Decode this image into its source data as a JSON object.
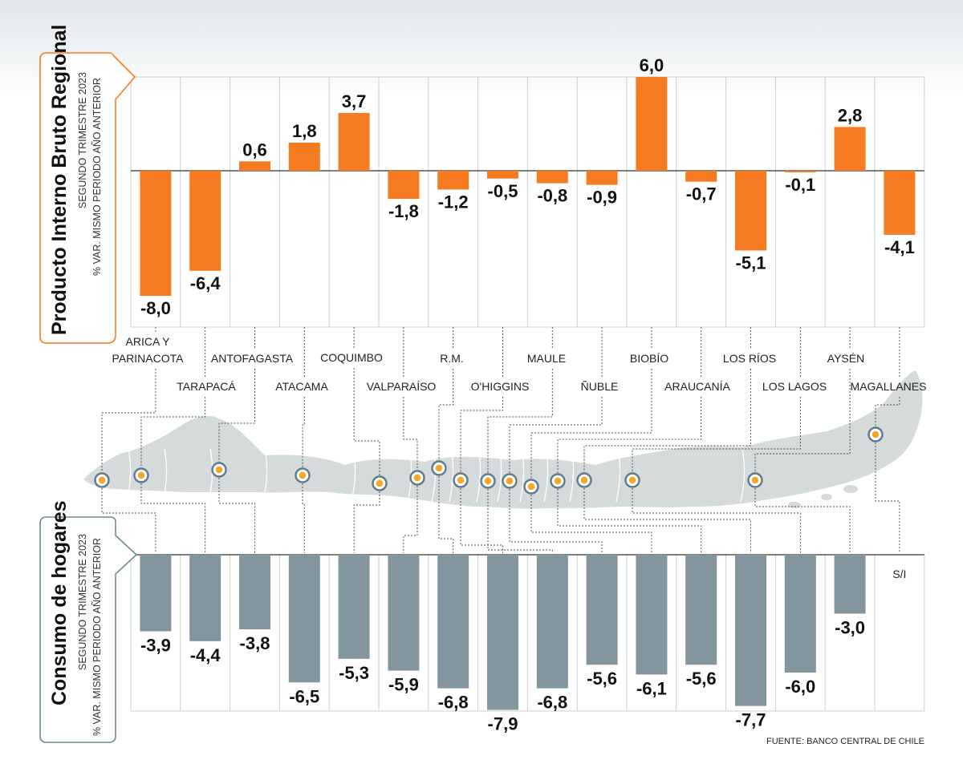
{
  "chart_data": [
    {
      "type": "bar",
      "title": "Producto Interno Bruto Regional",
      "subtitle_1": "SEGUNDO TRIMESTRE 2023",
      "subtitle_2": "% VAR. MISMO PERIODO AÑO ANTERIOR",
      "categories": [
        "ARICA Y PARINACOTA",
        "TARAPACÁ",
        "ANTOFAGASTA",
        "ATACAMA",
        "COQUIMBO",
        "VALPARAÍSO",
        "R.M.",
        "O'HIGGINS",
        "MAULE",
        "ÑUBLE",
        "BIOBÍO",
        "ARAUCANÍA",
        "LOS RÍOS",
        "LOS LAGOS",
        "AYSÉN",
        "MAGALLANES"
      ],
      "values": [
        -8.0,
        -6.4,
        0.6,
        1.8,
        3.7,
        -1.8,
        -1.2,
        -0.5,
        -0.8,
        -0.9,
        6.0,
        -0.7,
        -5.1,
        -0.1,
        2.8,
        -4.1
      ],
      "labels": [
        "-8,0",
        "-6,4",
        "0,6",
        "1,8",
        "3,7",
        "-1,8",
        "-1,2",
        "-0,5",
        "-0,8",
        "-0,9",
        "6,0",
        "-0,7",
        "-5,1",
        "-0,1",
        "2,8",
        "-4,1"
      ],
      "color": "#f47b20"
    },
    {
      "type": "bar",
      "title": "Consumo de hogares",
      "subtitle_1": "SEGUNDO TRIMESTRE 2023",
      "subtitle_2": "% VAR. MISMO PERIODO AÑO ANTERIOR",
      "categories": [
        "ARICA Y PARINACOTA",
        "TARAPACÁ",
        "ANTOFAGASTA",
        "ATACAMA",
        "COQUIMBO",
        "VALPARAÍSO",
        "R.M.",
        "O'HIGGINS",
        "MAULE",
        "ÑUBLE",
        "BIOBÍO",
        "ARAUCANÍA",
        "LOS RÍOS",
        "LOS LAGOS",
        "AYSÉN",
        "MAGALLANES"
      ],
      "values": [
        -3.9,
        -4.4,
        -3.8,
        -6.5,
        -5.3,
        -5.9,
        -6.8,
        -7.9,
        -6.8,
        -5.6,
        -6.1,
        -5.6,
        -7.7,
        -6.0,
        -3.0,
        null
      ],
      "labels": [
        "-3,9",
        "-4,4",
        "-3,8",
        "-6,5",
        "-5,3",
        "-5,9",
        "-6,8",
        "-7,9",
        "-6,8",
        "-5,6",
        "-6,1",
        "-5,6",
        "-7,7",
        "-6,0",
        "-3,0",
        "S/I"
      ],
      "color": "#84969d"
    }
  ],
  "region_labels": [
    [
      "ARICA Y",
      "PARINACOTA"
    ],
    [
      "TARAPACÁ"
    ],
    [
      "ANTOFAGASTA"
    ],
    [
      "ATACAMA"
    ],
    [
      "COQUIMBO"
    ],
    [
      "VALPARAÍSO"
    ],
    [
      "R.M."
    ],
    [
      "O'HIGGINS"
    ],
    [
      "MAULE"
    ],
    [
      "ÑUBLE"
    ],
    [
      "BIOBÍO"
    ],
    [
      "ARAUCANÍA"
    ],
    [
      "LOS RÍOS"
    ],
    [
      "LOS LAGOS"
    ],
    [
      "AYSÉN"
    ],
    [
      "MAGALLANES"
    ]
  ],
  "source": "FUENTE: BANCO CENTRAL DE CHILE",
  "colors": {
    "pib": "#f47b20",
    "consumo": "#84969d",
    "map": "#d5dadb",
    "marker_fill": "#f5a623",
    "marker_ring": "#5e7a86",
    "grid": "#c9cfd2"
  }
}
